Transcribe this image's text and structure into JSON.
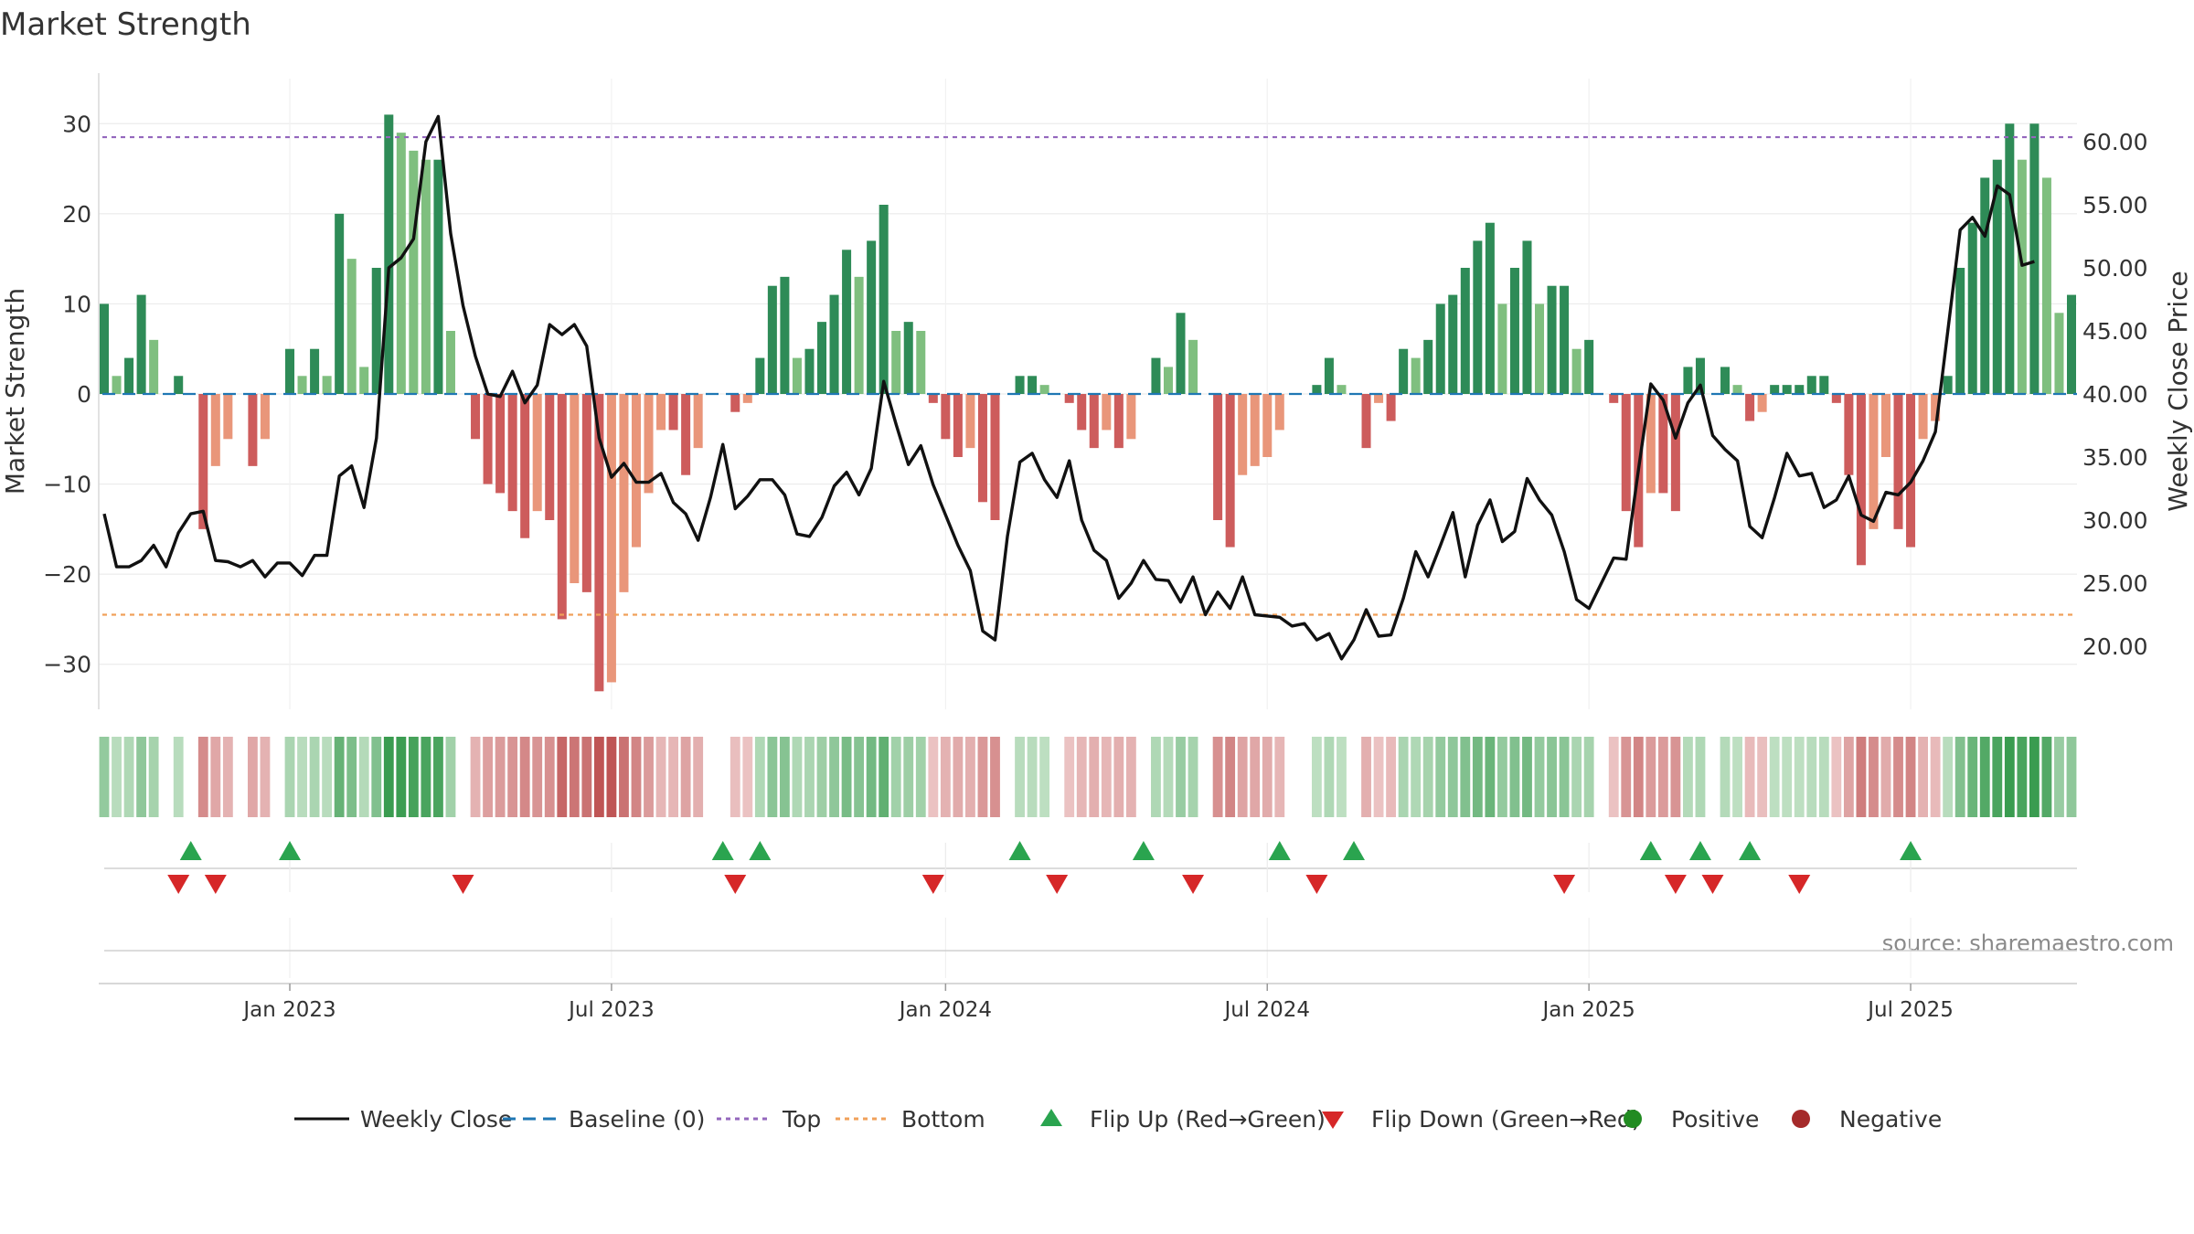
{
  "chart_data": {
    "type": "bar",
    "title": "Market Strength",
    "ylabel_left": "Market Strength",
    "ylabel_right": "Weekly Close Price",
    "source": "source: sharemaestro.com",
    "ylim_left": [
      -35,
      35
    ],
    "ylim_right": [
      15,
      65
    ],
    "yticks_left": [
      {
        "value": 30,
        "label": "30"
      },
      {
        "value": 20,
        "label": "20"
      },
      {
        "value": 10,
        "label": "10"
      },
      {
        "value": 0,
        "label": "0"
      },
      {
        "value": -10,
        "label": "−10"
      },
      {
        "value": -20,
        "label": "−20"
      },
      {
        "value": -30,
        "label": "−30"
      }
    ],
    "yticks_right": [
      {
        "value": 60,
        "label": "60.00"
      },
      {
        "value": 55,
        "label": "55.00"
      },
      {
        "value": 50,
        "label": "50.00"
      },
      {
        "value": 45,
        "label": "45.00"
      },
      {
        "value": 40,
        "label": "40.00"
      },
      {
        "value": 35,
        "label": "35.00"
      },
      {
        "value": 30,
        "label": "30.00"
      },
      {
        "value": 25,
        "label": "25.00"
      },
      {
        "value": 20,
        "label": "20.00"
      }
    ],
    "xticks": [
      {
        "index": 15,
        "label": "Jan 2023"
      },
      {
        "index": 41,
        "label": "Jul 2023"
      },
      {
        "index": 68,
        "label": "Jan 2024"
      },
      {
        "index": 94,
        "label": "Jul 2024"
      },
      {
        "index": 120,
        "label": "Jan 2025"
      },
      {
        "index": 146,
        "label": "Jul 2025"
      }
    ],
    "top_line": 28.5,
    "bottom_line": -24.5,
    "strength": [
      10,
      2,
      4,
      11,
      6,
      0,
      2,
      0,
      -15,
      -8,
      -5,
      0,
      -8,
      -5,
      0,
      5,
      2,
      5,
      2,
      20,
      15,
      3,
      14,
      31,
      29,
      27,
      26,
      26,
      7,
      0,
      -5,
      -10,
      -11,
      -13,
      -16,
      -13,
      -14,
      -25,
      -21,
      -22,
      -33,
      -32,
      -22,
      -17,
      -11,
      -4,
      -4,
      -9,
      -6,
      0,
      0,
      -2,
      -1,
      4,
      12,
      13,
      4,
      5,
      8,
      11,
      16,
      13,
      17,
      21,
      7,
      8,
      7,
      -1,
      -5,
      -7,
      -6,
      -12,
      -14,
      0,
      2,
      2,
      1,
      0,
      -1,
      -4,
      -6,
      -4,
      -6,
      -5,
      0,
      4,
      3,
      9,
      6,
      0,
      -14,
      -17,
      -9,
      -8,
      -7,
      -4,
      0,
      0,
      1,
      4,
      1,
      0,
      -6,
      -1,
      -3,
      5,
      4,
      6,
      10,
      11,
      14,
      17,
      19,
      10,
      14,
      17,
      10,
      12,
      12,
      5,
      6,
      0,
      -1,
      -13,
      -17,
      -11,
      -11,
      -13,
      3,
      4,
      0,
      3,
      1,
      -3,
      -2,
      1,
      1,
      1,
      2,
      2,
      -1,
      -9,
      -19,
      -15,
      -7,
      -15,
      -17,
      -5,
      -3,
      2,
      14,
      19,
      24,
      26,
      30,
      26,
      30,
      24,
      9,
      11
    ],
    "close": [
      30.5,
      26.3,
      26.3,
      26.8,
      28,
      26.3,
      29,
      30.5,
      30.7,
      26.8,
      26.7,
      26.3,
      26.8,
      25.5,
      26.6,
      26.6,
      25.6,
      27.2,
      27.2,
      33.5,
      34.3,
      31,
      36.5,
      50,
      50.8,
      52.3,
      60,
      62,
      52.7,
      47,
      43,
      40,
      39.8,
      41.8,
      39.3,
      40.7,
      45.5,
      44.7,
      45.5,
      43.8,
      36.5,
      33.4,
      34.5,
      33,
      33,
      33.7,
      31.4,
      30.5,
      28.4,
      31.8,
      36,
      30.9,
      31.9,
      33.2,
      33.2,
      32,
      28.9,
      28.7,
      30.2,
      32.7,
      33.8,
      32,
      34.1,
      41,
      37.6,
      34.4,
      35.9,
      32.8,
      30.4,
      28,
      26,
      21.2,
      20.5,
      28.7,
      34.6,
      35.3,
      33.2,
      31.8,
      34.7,
      30,
      27.6,
      26.8,
      23.8,
      25,
      26.8,
      25.3,
      25.2,
      23.5,
      25.5,
      22.5,
      24.3,
      23,
      25.5,
      22.5,
      22.4,
      22.3,
      21.6,
      21.8,
      20.5,
      21,
      19,
      20.5,
      22.9,
      20.8,
      20.9,
      23.8,
      27.5,
      25.5,
      28,
      30.6,
      25.5,
      29.6,
      31.6,
      28.3,
      29.1,
      33.3,
      31.6,
      30.4,
      27.5,
      23.7,
      23,
      25,
      27,
      26.9,
      34,
      40.8,
      39.5,
      36.5,
      39.3,
      40.7,
      36.7,
      35.6,
      34.7,
      29.5,
      28.6,
      31.8,
      35.3,
      33.5,
      33.7,
      31,
      31.6,
      33.5,
      30.4,
      29.9,
      32.2,
      32,
      33,
      34.7,
      37,
      45,
      53,
      54,
      52.5,
      56.5,
      55.8,
      50.2,
      50.5
    ],
    "flips_up": [
      7,
      15,
      50,
      53,
      74,
      84,
      95,
      101,
      125,
      129,
      133,
      146
    ],
    "flips_down": [
      6,
      9,
      29,
      51,
      67,
      77,
      88,
      98,
      118,
      127,
      130,
      137
    ],
    "legend": [
      {
        "name": "Weekly Close",
        "kind": "line-solid",
        "color": "#111111"
      },
      {
        "name": "Baseline (0)",
        "kind": "line-dash",
        "color": "#1f77b4"
      },
      {
        "name": "Top",
        "kind": "line-dot",
        "color": "#9467bd"
      },
      {
        "name": "Bottom",
        "kind": "line-dot",
        "color": "#f0a05a"
      },
      {
        "name": "Flip Up (Red→Green)",
        "kind": "tri-up",
        "color": "#2aa44f"
      },
      {
        "name": "Flip Down (Green→Red)",
        "kind": "tri-down",
        "color": "#d62728"
      },
      {
        "name": "Positive",
        "kind": "dot",
        "color": "#228b22"
      },
      {
        "name": "Negative",
        "kind": "dot",
        "color": "#a52a2a"
      }
    ],
    "colors": {
      "pos_strong": "#2e8b57",
      "pos_light": "#7fbf7f",
      "neg_strong": "#cd5c5c",
      "neg_light": "#e9967a",
      "price_line": "#111111",
      "baseline": "#1f77b4",
      "top": "#9467bd",
      "bottom": "#f0a05a"
    }
  }
}
